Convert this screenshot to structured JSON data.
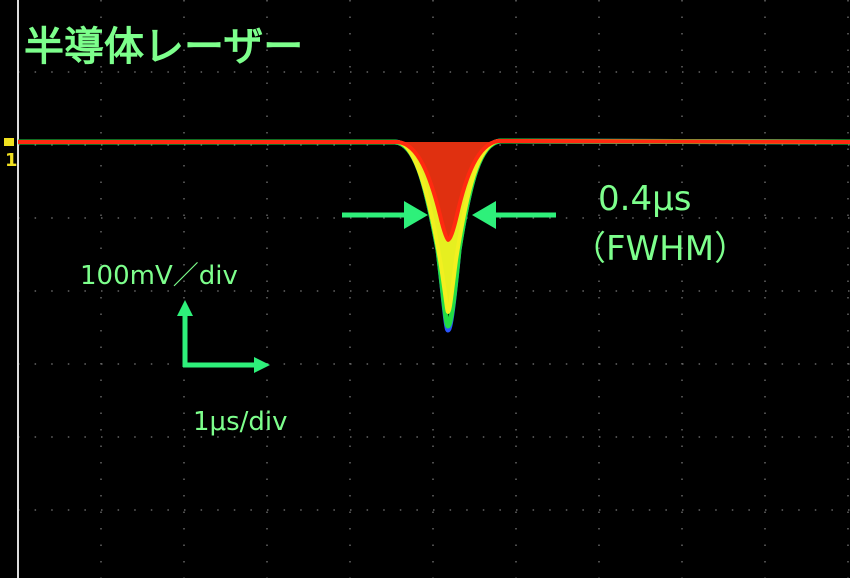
{
  "title": "半導体レーザー",
  "annotations": {
    "pulse_width": "0.4μs",
    "pulse_width_note": "（FWHM）",
    "vertical_scale": "100mV／div",
    "horizontal_scale": "1μs/div"
  },
  "channel_marker": "1"
}
